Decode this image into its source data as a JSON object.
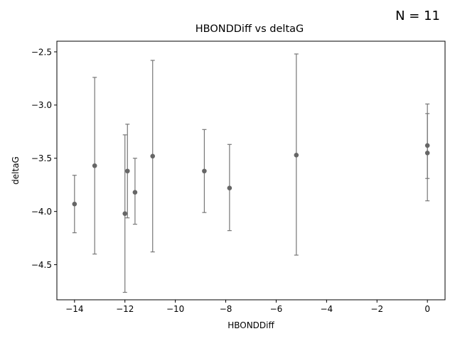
{
  "annotation": "N = 11",
  "chart_data": {
    "type": "scatter",
    "title": "HBONDDiff vs deltaG",
    "xlabel": "HBONDDiff",
    "ylabel": "deltaG",
    "xlim": [
      -14.7,
      0.7
    ],
    "ylim": [
      -4.83,
      -2.4
    ],
    "xticks": [
      -14,
      -12,
      -10,
      -8,
      -6,
      -4,
      -2,
      0
    ],
    "xtick_labels": [
      "−14",
      "−12",
      "−10",
      "−8",
      "−6",
      "−4",
      "−2",
      "0"
    ],
    "yticks": [
      -2.5,
      -3.0,
      -3.5,
      -4.0,
      -4.5
    ],
    "ytick_labels": [
      "−2.5",
      "−3.0",
      "−3.5",
      "−4.0",
      "−4.5"
    ],
    "grid": false,
    "marker_color": "#666666",
    "errorbar_color": "#777777",
    "points": [
      {
        "x": -14.0,
        "y": -3.93,
        "yerr_low": -4.2,
        "yerr_high": -3.66
      },
      {
        "x": -13.2,
        "y": -3.57,
        "yerr_low": -4.4,
        "yerr_high": -2.74
      },
      {
        "x": -12.0,
        "y": -4.02,
        "yerr_low": -4.76,
        "yerr_high": -3.28
      },
      {
        "x": -11.9,
        "y": -3.62,
        "yerr_low": -4.06,
        "yerr_high": -3.18
      },
      {
        "x": -11.6,
        "y": -3.82,
        "yerr_low": -4.12,
        "yerr_high": -3.5
      },
      {
        "x": -10.9,
        "y": -3.48,
        "yerr_low": -4.38,
        "yerr_high": -2.58
      },
      {
        "x": -8.85,
        "y": -3.62,
        "yerr_low": -4.01,
        "yerr_high": -3.23
      },
      {
        "x": -7.85,
        "y": -3.78,
        "yerr_low": -4.18,
        "yerr_high": -3.37
      },
      {
        "x": -5.2,
        "y": -3.47,
        "yerr_low": -4.41,
        "yerr_high": -2.52
      },
      {
        "x": 0.0,
        "y": -3.38,
        "yerr_low": -3.69,
        "yerr_high": -3.08
      },
      {
        "x": 0.0,
        "y": -3.45,
        "yerr_low": -3.9,
        "yerr_high": -2.99
      }
    ]
  }
}
